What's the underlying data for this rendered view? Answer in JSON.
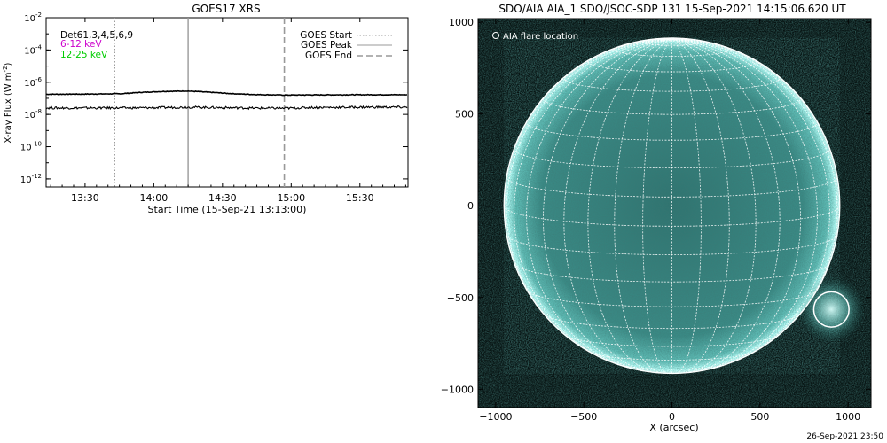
{
  "chart_data": [
    {
      "type": "line",
      "title": "GOES17 XRS",
      "xlabel": "Start Time (15-Sep-21 13:13:00)",
      "ylabel": "X-ray Flux (W m",
      "ylabel_unit_exp": "-2",
      "ylabel_close": ")",
      "x_ticks": [
        "13:30",
        "14:00",
        "14:30",
        "15:00",
        "15:30"
      ],
      "x_tick_minutes": [
        30,
        60,
        90,
        120,
        150
      ],
      "xlim_minutes": [
        13,
        171
      ],
      "y_ticks_exp": [
        "-2",
        "-4",
        "-6",
        "-8",
        "-10",
        "-12"
      ],
      "ylim_log10": [
        -12.5,
        -2
      ],
      "channel_labels": [
        {
          "text": "Det61,3,4,5,6,9",
          "color": "#000000"
        },
        {
          "text": "6-12 keV",
          "color": "#cc00cc"
        },
        {
          "text": "12-25 keV",
          "color": "#00cc00"
        }
      ],
      "legend": [
        {
          "name": "GOES Start",
          "style": "dotted"
        },
        {
          "name": "GOES Peak",
          "style": "solid"
        },
        {
          "name": "GOES End",
          "style": "dashed"
        }
      ],
      "legend_position": "top-right",
      "markers_minutes": {
        "start": 43,
        "peak": 75,
        "end": 117
      },
      "series": [
        {
          "name": "GOES Long",
          "x": [
            13,
            30,
            45,
            55,
            65,
            75,
            85,
            95,
            105,
            117,
            130,
            150,
            171
          ],
          "log10_y": [
            -6.75,
            -6.74,
            -6.72,
            -6.63,
            -6.57,
            -6.55,
            -6.63,
            -6.72,
            -6.77,
            -6.8,
            -6.79,
            -6.78,
            -6.78
          ]
        },
        {
          "name": "GOES Short",
          "x": [
            13,
            30,
            45,
            60,
            75,
            90,
            105,
            117,
            130,
            150,
            171
          ],
          "log10_y": [
            -7.6,
            -7.6,
            -7.6,
            -7.59,
            -7.55,
            -7.58,
            -7.61,
            -7.62,
            -7.57,
            -7.55,
            -7.55
          ]
        }
      ]
    },
    {
      "type": "image",
      "title": "SDO/AIA AIA_1 SDO/JSOC-SDP 131 15-Sep-2021 14:15:06.620 UT",
      "legend_label": "AIA flare location",
      "xlabel": "X (arcsec)",
      "ylabel": "",
      "x_ticks": [
        "-1000",
        "-500",
        "0",
        "500",
        "1000"
      ],
      "y_ticks": [
        "1000",
        "500",
        "0",
        "-500",
        "-1000"
      ],
      "xlim": [
        -1100,
        1130
      ],
      "ylim": [
        -1100,
        1020
      ],
      "solar_radius_arcsec": 953,
      "grid_spacing_deg": 10,
      "flare_location_arcsec": [
        905,
        -565
      ],
      "flare_circle_radius_arcsec": 100,
      "colors": {
        "disk": "#3d8f8a",
        "limb": "#b6fff9",
        "background": "#071312",
        "grid": "#ffffff"
      }
    }
  ],
  "footer": {
    "timestamp": "26-Sep-2021 23:50"
  }
}
